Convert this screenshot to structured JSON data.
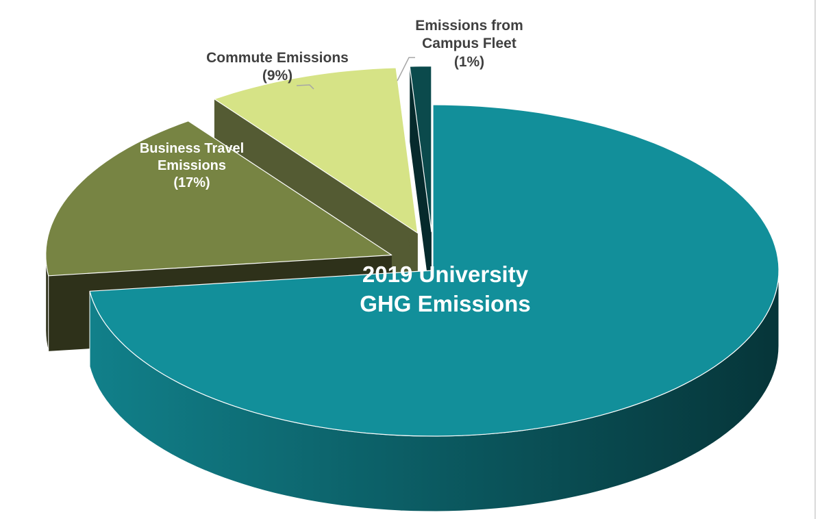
{
  "chart_data": {
    "type": "pie",
    "style": "3d-exploded",
    "title": "2019 University GHG Emissions",
    "slices": [
      {
        "name": "2019 University GHG Emissions",
        "value": 73,
        "label": "",
        "color": "#128f9a",
        "side": "#0a4a50"
      },
      {
        "name": "Business Travel Emissions",
        "value": 17,
        "label": "(17%)",
        "color": "#778443",
        "side": "#2e311a"
      },
      {
        "name": "Commute Emissions",
        "value": 9,
        "label": "(9%)",
        "color": "#d6e386",
        "side": "#545b33"
      },
      {
        "name": "Emissions from Campus Fleet",
        "value": 1,
        "label": "(1%)",
        "color": "#0b4a4c",
        "side": "#062a2c"
      }
    ],
    "labels": {
      "title_line1": "2019 University",
      "title_line2": "GHG Emissions",
      "business_line1": "Business Travel",
      "business_line2": "Emissions",
      "business_pct": "(17%)",
      "commute_line1": "Commute Emissions",
      "commute_pct": "(9%)",
      "fleet_line1": "Emissions from",
      "fleet_line2": "Campus Fleet",
      "fleet_pct": "(1%)"
    }
  }
}
